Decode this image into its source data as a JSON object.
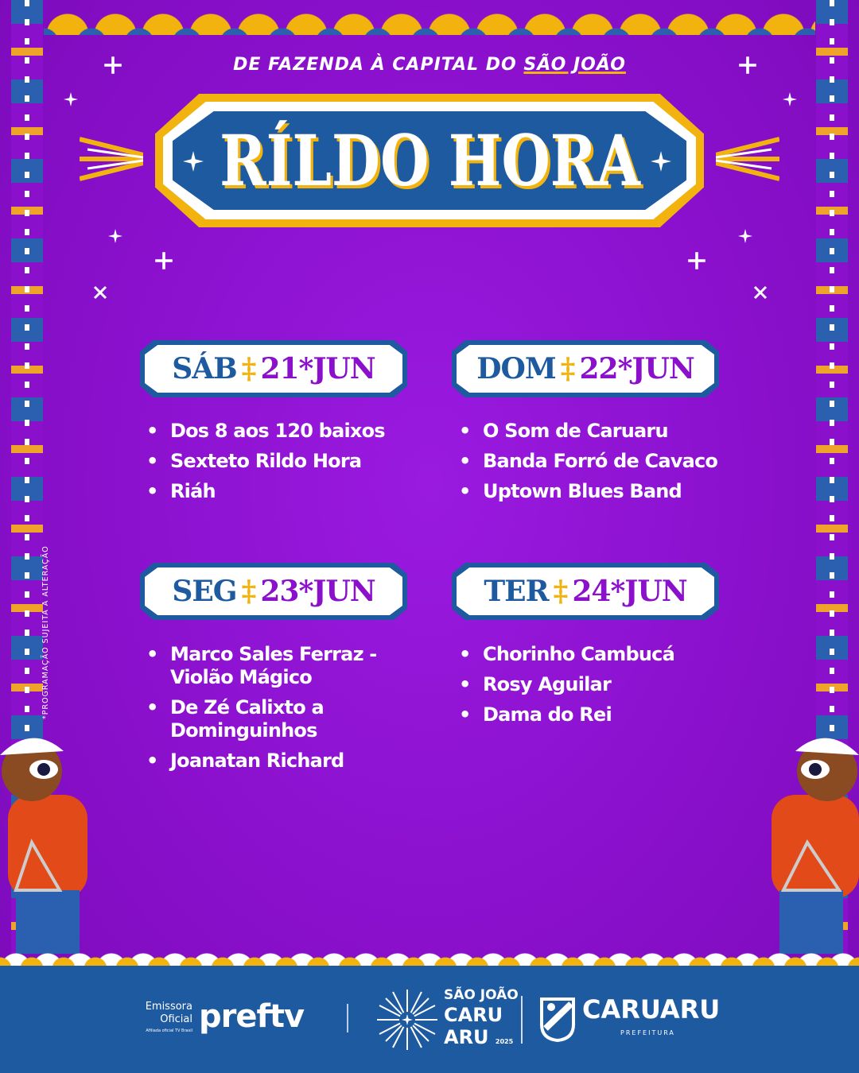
{
  "header": {
    "subtitle_prefix": "DE FAZENDA À CAPITAL DO",
    "subtitle_highlight": "SÃO JOÃO",
    "title": "RÍLDO HORA"
  },
  "days": [
    {
      "day": "SÁB",
      "date": "21*JUN",
      "acts": [
        "Dos 8 aos 120 baixos",
        "Sexteto Rildo Hora",
        "Riáh"
      ]
    },
    {
      "day": "DOM",
      "date": "22*JUN",
      "acts": [
        "O Som de Caruaru",
        "Banda Forró de Cavaco",
        "Uptown Blues Band"
      ]
    },
    {
      "day": "SEG",
      "date": "23*JUN",
      "acts": [
        "Marco Sales Ferraz - Violão Mágico",
        "De Zé Calixto a Dominguinhos",
        "Joanatan Richard"
      ]
    },
    {
      "day": "TER",
      "date": "24*JUN",
      "acts": [
        "Chorinho Cambucá",
        "Rosy Aguilar",
        "Dama do Rei"
      ]
    }
  ],
  "note": "*PROGRAMAÇÃO SUJEITA A ALTERAÇÃO",
  "footer": {
    "emissora": "Emissora",
    "oficial": "Oficial",
    "afiliada": "Afiliada oficial TV Brasil",
    "preftv": "preftv",
    "sj1": "SÃO JOÃO",
    "sj2": "CARU",
    "sj3": "ARU",
    "year": "2025",
    "caruaru": "CARUARU",
    "prefeitura": "PREFEITURA"
  },
  "colors": {
    "purple": "#8a10cc",
    "blue": "#1d5aa0",
    "gold": "#f2b30f",
    "white": "#ffffff"
  }
}
